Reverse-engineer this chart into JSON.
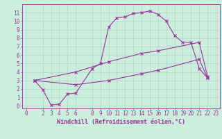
{
  "xlabel": "Windchill (Refroidissement éolien,°C)",
  "bg_color": "#cceedd",
  "grid_color": "#aacccc",
  "line_color": "#993399",
  "xticks": [
    0,
    2,
    3,
    4,
    5,
    6,
    8,
    9,
    10,
    11,
    12,
    13,
    14,
    15,
    16,
    17,
    18,
    19,
    20,
    21,
    22,
    23
  ],
  "yticks": [
    0,
    1,
    2,
    3,
    4,
    5,
    6,
    7,
    8,
    9,
    10,
    11
  ],
  "xlim": [
    -0.5,
    23.5
  ],
  "ylim": [
    -0.3,
    12
  ],
  "line1_x": [
    1,
    2,
    3,
    4,
    5,
    6,
    8,
    9,
    10,
    11,
    12,
    13,
    14,
    15,
    16,
    17,
    18,
    19,
    20,
    21,
    22
  ],
  "line1_y": [
    3.0,
    1.9,
    0.1,
    0.2,
    1.4,
    1.5,
    4.4,
    5.0,
    9.3,
    10.4,
    10.5,
    10.9,
    11.0,
    11.2,
    10.8,
    10.0,
    8.3,
    7.5,
    7.5,
    4.4,
    3.3
  ],
  "line2_x": [
    1,
    6,
    10,
    14,
    16,
    21,
    22
  ],
  "line2_y": [
    3.0,
    4.0,
    5.2,
    6.2,
    6.5,
    7.5,
    3.5
  ],
  "line3_x": [
    1,
    6,
    10,
    14,
    16,
    21,
    22
  ],
  "line3_y": [
    3.0,
    2.5,
    3.0,
    3.8,
    4.2,
    5.5,
    3.3
  ],
  "font_size": 5.5,
  "xlabel_font_size": 6.0,
  "title_font_size": 6.5
}
